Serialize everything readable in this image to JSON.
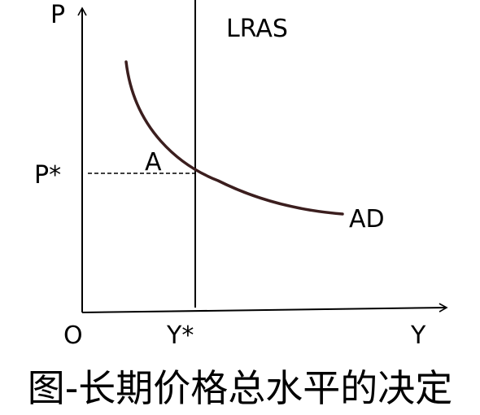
{
  "diagram": {
    "axes": {
      "y_label": "P",
      "x_label": "Y",
      "origin_label": "O"
    },
    "curves": {
      "lras_label": "LRAS",
      "ad_label": "AD"
    },
    "points": {
      "equilibrium_label": "A",
      "price_label": "P*",
      "output_label": "Y*"
    },
    "colors": {
      "axis": "#000000",
      "lras": "#000000",
      "ad_curve": "#3b1e1e",
      "guide": "#000000"
    }
  },
  "caption": "图-长期价格总水平的决定"
}
